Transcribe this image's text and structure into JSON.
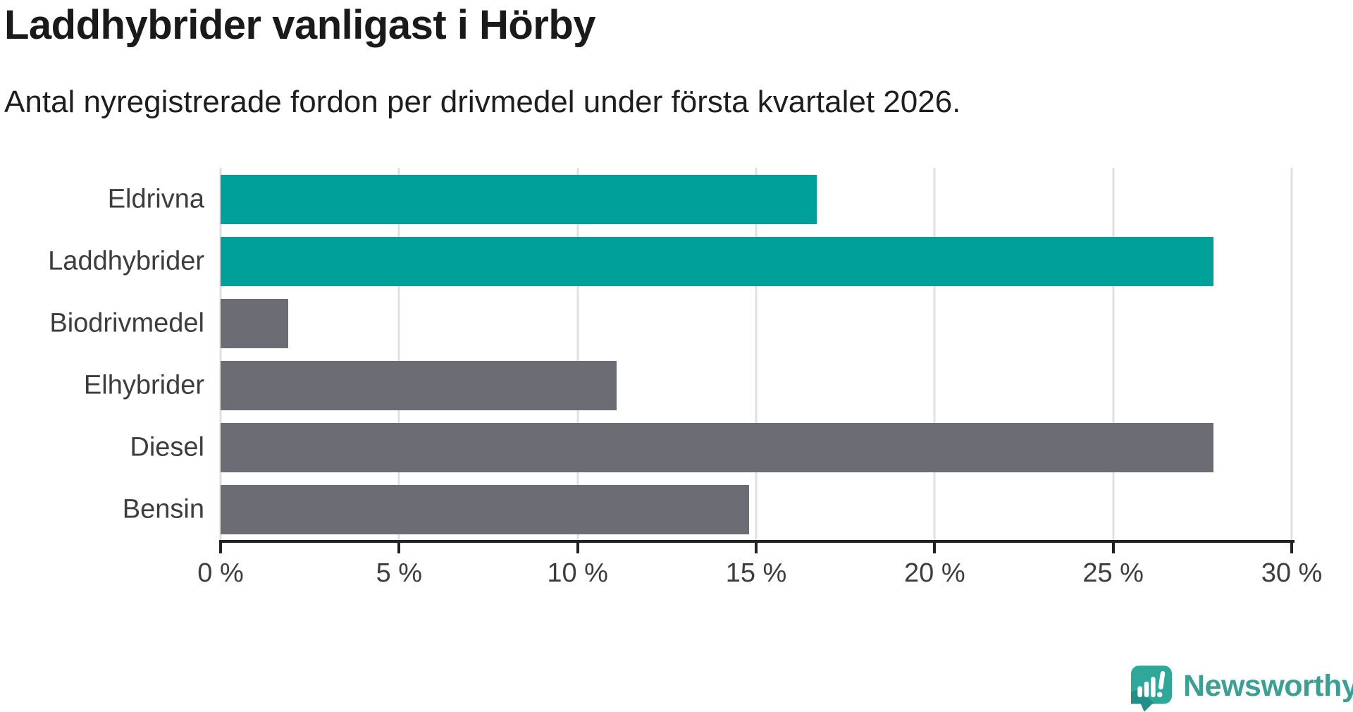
{
  "header": {
    "title": "Laddhybrider vanligast i Hörby",
    "subtitle": "Antal nyregistrerade fordon per drivmedel under första kvartalet 2026."
  },
  "chart_data": {
    "type": "bar",
    "orientation": "horizontal",
    "title": "Laddhybrider vanligast i Hörby",
    "subtitle": "Antal nyregistrerade fordon per drivmedel under första kvartalet 2026.",
    "categories": [
      "Eldrivna",
      "Laddhybrider",
      "Biodrivmedel",
      "Elhybrider",
      "Diesel",
      "Bensin"
    ],
    "values": [
      16.7,
      27.8,
      1.9,
      11.1,
      27.8,
      14.8
    ],
    "unit": "%",
    "bar_colors": [
      "#00a09a",
      "#00a09a",
      "#6c6c74",
      "#6c6c74",
      "#6c6c74",
      "#6c6c74"
    ],
    "highlight_color": "#00a09a",
    "default_color": "#6c6c74",
    "xlim": [
      0,
      30
    ],
    "x_ticks": [
      0,
      5,
      10,
      15,
      20,
      25,
      30
    ],
    "x_tick_labels": [
      "0 %",
      "5 %",
      "10 %",
      "15 %",
      "20 %",
      "25 %",
      "30 %"
    ],
    "grid": true,
    "gridline_color": "#e1e1e1",
    "xlabel": "",
    "ylabel": "",
    "legend": false
  },
  "footer": {
    "brand": "Newsworthy",
    "brand_color": "#3aa094",
    "logo_icon": "speech-bubble-bar-chart-icon"
  }
}
